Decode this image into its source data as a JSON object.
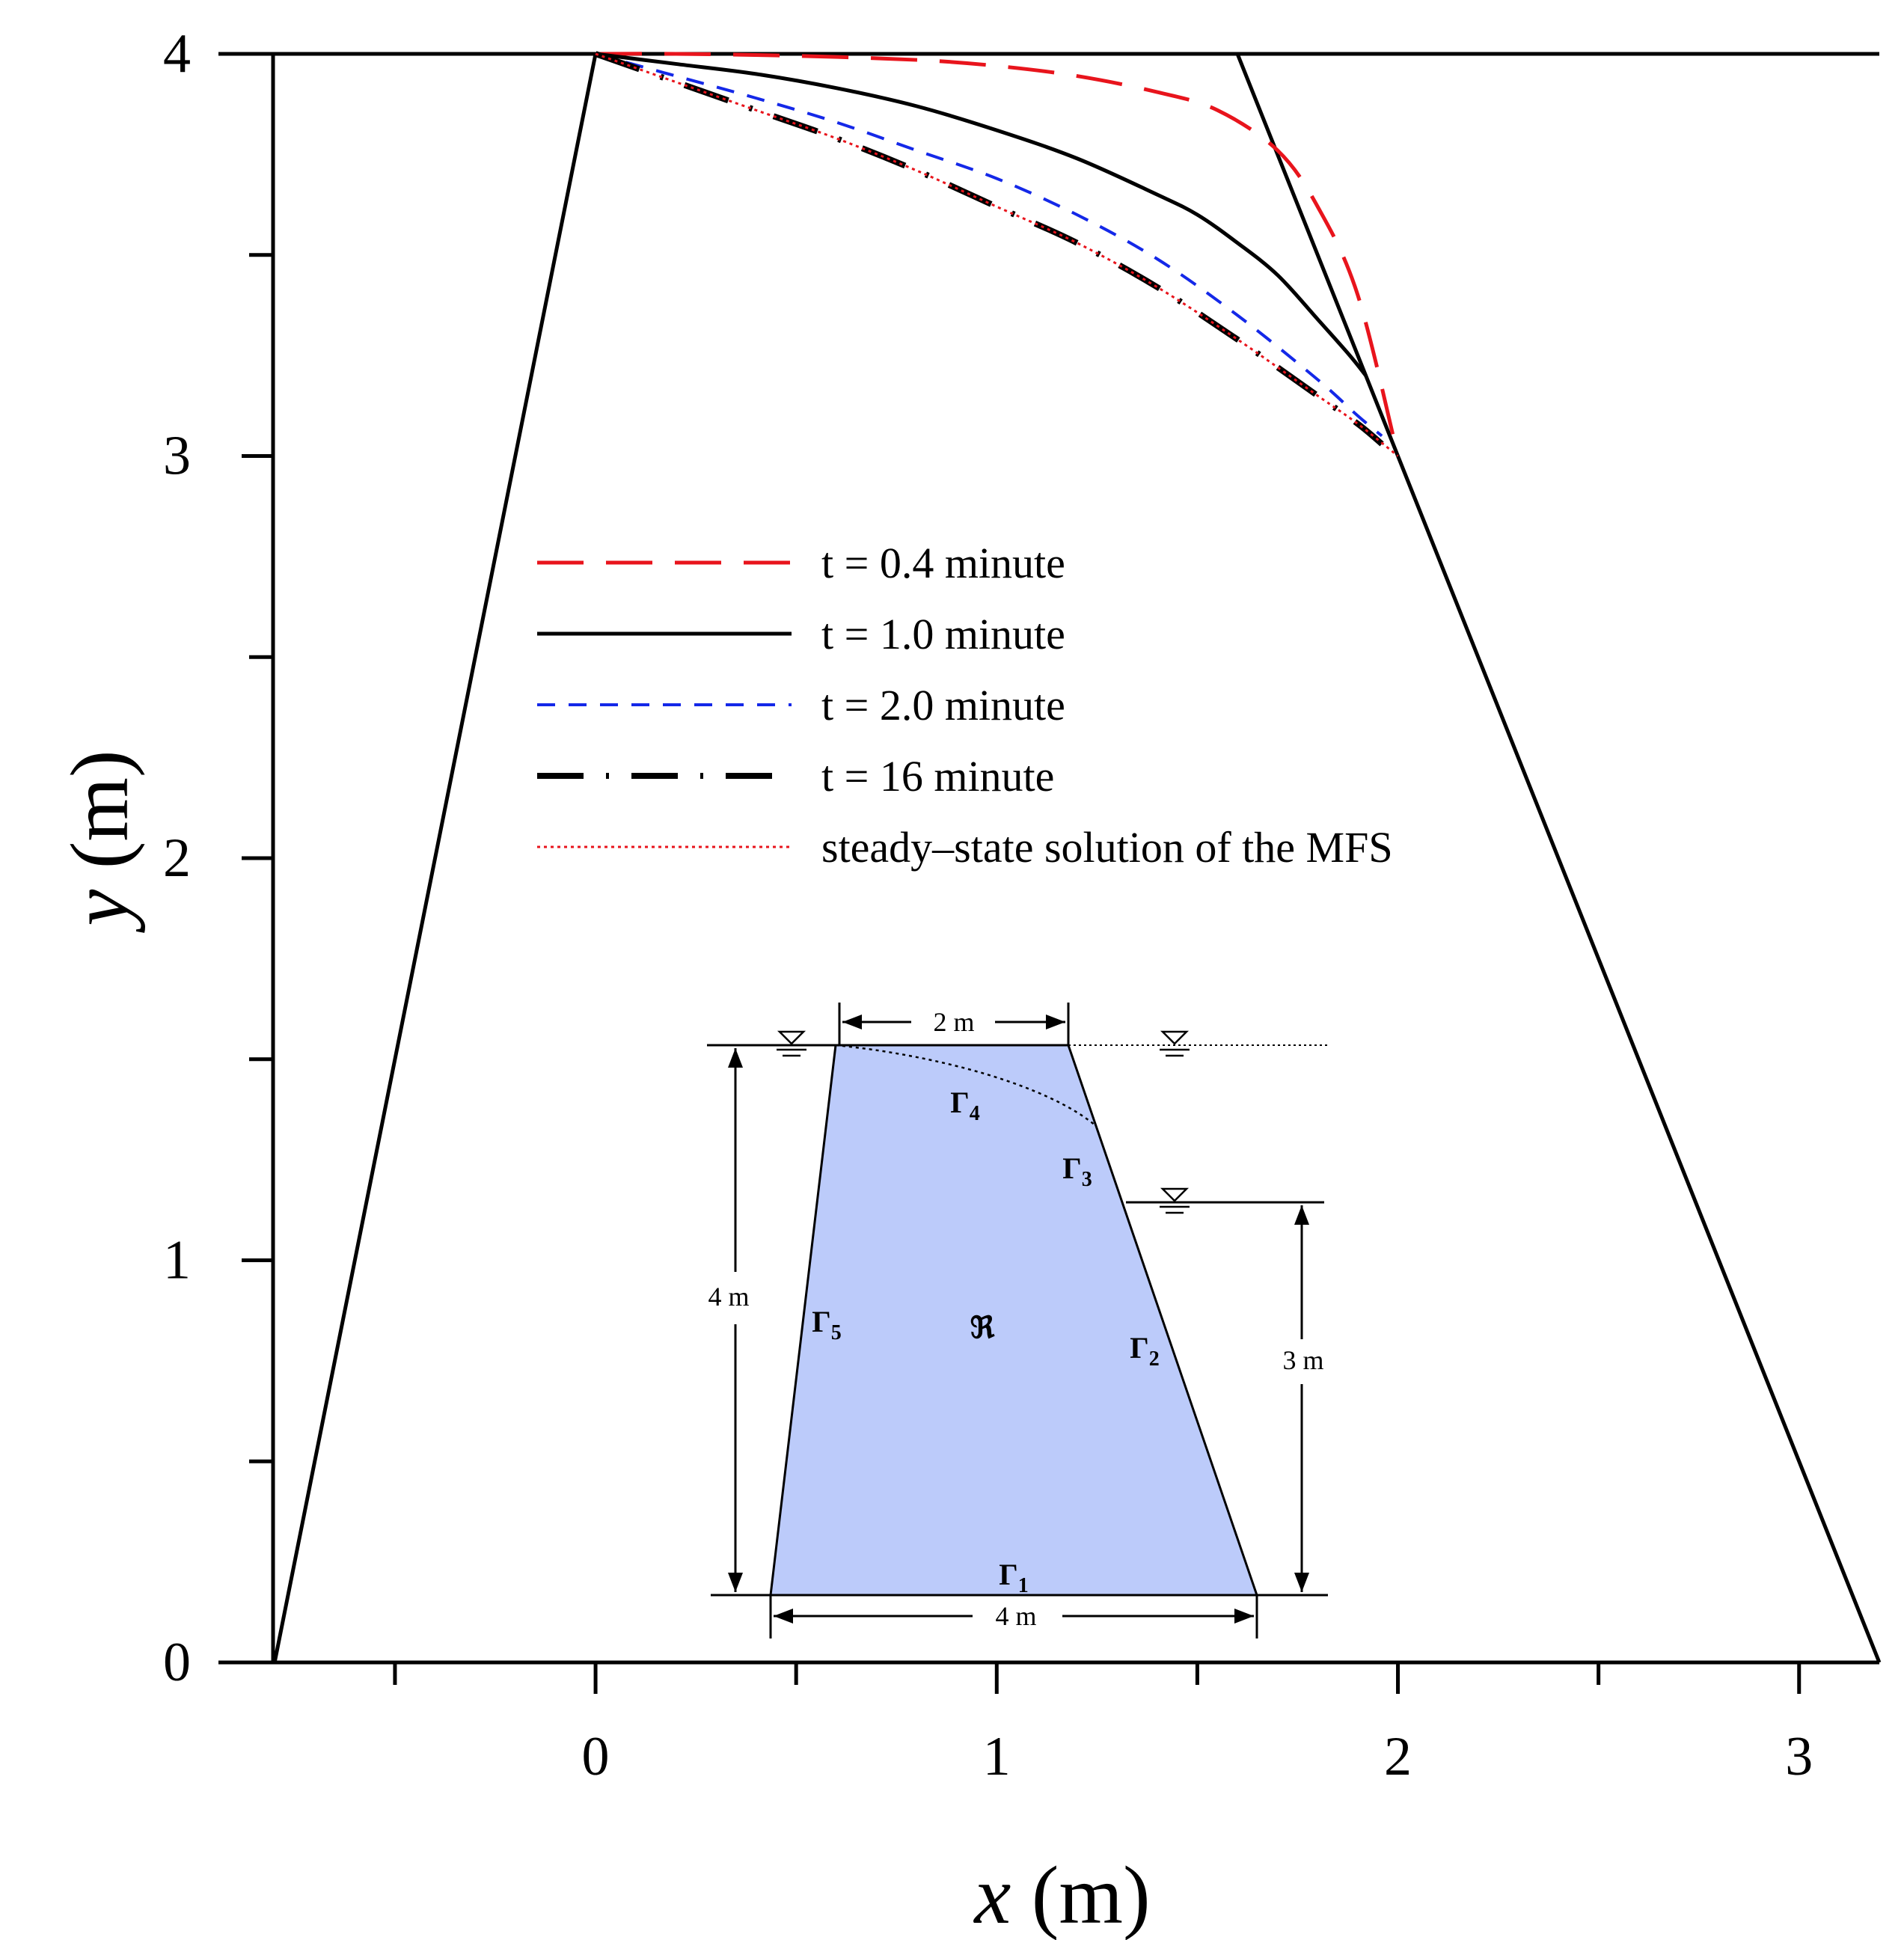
{
  "chart_data": {
    "type": "line",
    "xlabel": "x",
    "xlabel_unit": " (m)",
    "ylabel": "y",
    "ylabel_unit": " (m)",
    "xlim": [
      -0.94,
      3.2
    ],
    "ylim": [
      0,
      4
    ],
    "x_ticks_major": [
      0,
      1,
      2,
      3
    ],
    "x_ticks_minor": [
      -0.5,
      0.5,
      1.5,
      2.5
    ],
    "y_ticks_major": [
      0,
      1,
      2,
      3,
      4
    ],
    "y_ticks_minor": [
      0.5,
      1.5,
      2.5,
      3.5
    ],
    "legend_position": "center-left",
    "dam_outline": {
      "x": [
        -0.8,
        0,
        1.6,
        3.2
      ],
      "y": [
        0,
        4,
        4,
        0
      ]
    },
    "series": [
      {
        "name": "t = 0.4 minute",
        "color": "#e8141c",
        "style": "long-dash",
        "x": [
          0,
          0.2,
          0.5,
          0.8,
          1.0,
          1.2,
          1.4,
          1.55,
          1.7,
          1.8,
          1.9,
          2.0
        ],
        "y": [
          4.0,
          4.0,
          3.995,
          3.985,
          3.97,
          3.945,
          3.905,
          3.86,
          3.76,
          3.62,
          3.4,
          3.0
        ]
      },
      {
        "name": "t = 1.0 minute",
        "color": "#000000",
        "style": "solid",
        "x": [
          0,
          0.2,
          0.4,
          0.6,
          0.8,
          1.0,
          1.2,
          1.4,
          1.5,
          1.6,
          1.7,
          1.8,
          1.88,
          1.92
        ],
        "y": [
          4.0,
          3.975,
          3.95,
          3.915,
          3.87,
          3.81,
          3.74,
          3.65,
          3.6,
          3.53,
          3.45,
          3.34,
          3.25,
          3.2
        ]
      },
      {
        "name": "t = 2.0 minute",
        "color": "#1428e8",
        "style": "short-dash",
        "x": [
          0,
          0.2,
          0.4,
          0.6,
          0.8,
          1.0,
          1.2,
          1.4,
          1.6,
          1.8,
          1.9,
          1.96
        ],
        "y": [
          4.0,
          3.945,
          3.89,
          3.83,
          3.76,
          3.69,
          3.6,
          3.49,
          3.35,
          3.19,
          3.1,
          3.05
        ]
      },
      {
        "name": "t = 16 minute",
        "color": "#000000",
        "style": "dash-dot",
        "x": [
          0,
          0.2,
          0.4,
          0.6,
          0.8,
          1.0,
          1.2,
          1.4,
          1.6,
          1.8,
          1.9,
          1.96
        ],
        "y": [
          4.0,
          3.93,
          3.86,
          3.79,
          3.71,
          3.62,
          3.53,
          3.42,
          3.29,
          3.15,
          3.08,
          3.03
        ]
      },
      {
        "name": "steady–state solution of the MFS",
        "color": "#e8141c",
        "style": "dotted",
        "x": [
          0,
          0.2,
          0.4,
          0.6,
          0.8,
          1.0,
          1.2,
          1.4,
          1.6,
          1.8,
          1.9,
          2.0
        ],
        "y": [
          4.0,
          3.93,
          3.86,
          3.79,
          3.71,
          3.62,
          3.53,
          3.42,
          3.29,
          3.15,
          3.08,
          3.0
        ]
      }
    ]
  },
  "inset": {
    "top_width_label": "2 m",
    "bottom_width_label": "4 m",
    "height_left_label": "4 m",
    "height_right_label": "3 m",
    "region_label": "ℜ",
    "boundaries": [
      {
        "base": "Γ",
        "sub": "1"
      },
      {
        "base": "Γ",
        "sub": "2"
      },
      {
        "base": "Γ",
        "sub": "3"
      },
      {
        "base": "Γ",
        "sub": "4"
      },
      {
        "base": "Γ",
        "sub": "5"
      }
    ],
    "fill_color": "#bccbfa",
    "water_symbol": "▽"
  }
}
